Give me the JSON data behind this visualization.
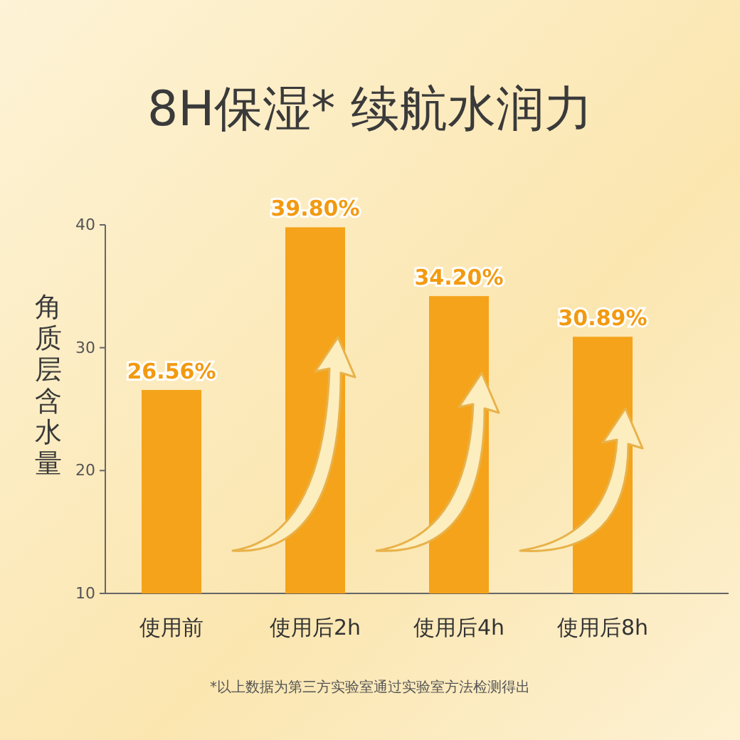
{
  "chart_data": {
    "type": "bar",
    "title": "8H保湿* 续航水润力",
    "ylabel": "角质层含水量",
    "categories": [
      "使用前",
      "使用后2h",
      "使用后4h",
      "使用后8h"
    ],
    "values": [
      26.56,
      39.8,
      34.2,
      30.89
    ],
    "value_labels": [
      "26.56%",
      "39.80%",
      "34.20%",
      "30.89%"
    ],
    "color": "#f5a31a",
    "ylim": [
      10,
      40
    ],
    "yticks": [
      10,
      20,
      30,
      40
    ],
    "annotations": [
      "*以上数据为第三方实验室通过实验室方法检测得出"
    ]
  }
}
